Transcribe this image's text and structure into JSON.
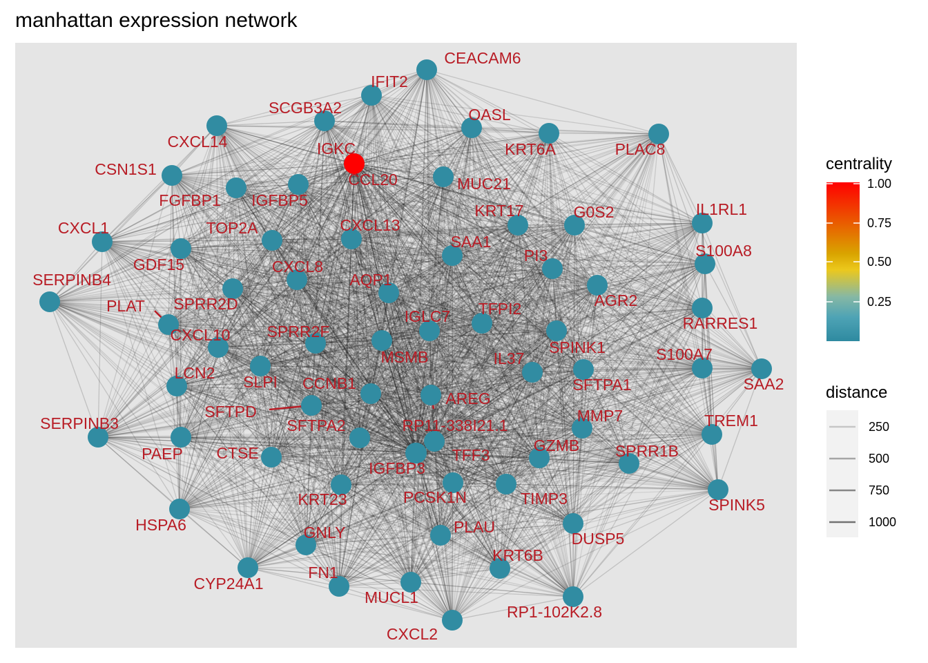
{
  "title": "manhattan expression network",
  "chart_data": {
    "type": "network",
    "title": "manhattan expression network",
    "panel_background": "#e5e5e5",
    "node_color_low": "#2e8aa0",
    "node_color_high": "#ff0000",
    "label_color": "#b81c25",
    "edge_color": "#1a1a1a",
    "nodes": [
      {
        "label": "CEACAM6",
        "centrality": 0.02
      },
      {
        "label": "IFIT2",
        "centrality": 0.02
      },
      {
        "label": "SCGB3A2",
        "centrality": 0.02
      },
      {
        "label": "OASL",
        "centrality": 0.02
      },
      {
        "label": "KRT6A",
        "centrality": 0.02
      },
      {
        "label": "PLAC8",
        "centrality": 0.02
      },
      {
        "label": "CXCL14",
        "centrality": 0.02
      },
      {
        "label": "IGKC",
        "centrality": 1.0
      },
      {
        "label": "CCL20",
        "centrality": 0.02
      },
      {
        "label": "CSN1S1",
        "centrality": 0.02
      },
      {
        "label": "MUC21",
        "centrality": 0.02
      },
      {
        "label": "FGFBP1",
        "centrality": 0.02
      },
      {
        "label": "IGFBP5",
        "centrality": 0.02
      },
      {
        "label": "IL1RL1",
        "centrality": 0.02
      },
      {
        "label": "KRT17",
        "centrality": 0.02
      },
      {
        "label": "G0S2",
        "centrality": 0.02
      },
      {
        "label": "CXCL1",
        "centrality": 0.02
      },
      {
        "label": "TOP2A",
        "centrality": 0.02
      },
      {
        "label": "CXCL13",
        "centrality": 0.02
      },
      {
        "label": "S100A8",
        "centrality": 0.02
      },
      {
        "label": "GDF15",
        "centrality": 0.02
      },
      {
        "label": "SAA1",
        "centrality": 0.02
      },
      {
        "label": "PI3",
        "centrality": 0.02
      },
      {
        "label": "CXCL8",
        "centrality": 0.02
      },
      {
        "label": "SERPINB4",
        "centrality": 0.02
      },
      {
        "label": "AQP1",
        "centrality": 0.02
      },
      {
        "label": "AGR2",
        "centrality": 0.02
      },
      {
        "label": "PLAT",
        "centrality": 0.02
      },
      {
        "label": "SPRR2D",
        "centrality": 0.02
      },
      {
        "label": "RARRES1",
        "centrality": 0.02
      },
      {
        "label": "IGLC7",
        "centrality": 0.02
      },
      {
        "label": "TFPI2",
        "centrality": 0.02
      },
      {
        "label": "CXCL10",
        "centrality": 0.02
      },
      {
        "label": "SPRR2F",
        "centrality": 0.02
      },
      {
        "label": "SPINK1",
        "centrality": 0.02
      },
      {
        "label": "S100A7",
        "centrality": 0.02
      },
      {
        "label": "MSMB",
        "centrality": 0.02
      },
      {
        "label": "SAA2",
        "centrality": 0.02
      },
      {
        "label": "IL37",
        "centrality": 0.02
      },
      {
        "label": "LCN2",
        "centrality": 0.02
      },
      {
        "label": "SLPI",
        "centrality": 0.02
      },
      {
        "label": "SFTPA1",
        "centrality": 0.02
      },
      {
        "label": "CCNB1",
        "centrality": 0.02
      },
      {
        "label": "AREG",
        "centrality": 0.02
      },
      {
        "label": "SFTPD",
        "centrality": 0.02
      },
      {
        "label": "MMP7",
        "centrality": 0.02
      },
      {
        "label": "SERPINB3",
        "centrality": 0.02
      },
      {
        "label": "TREM1",
        "centrality": 0.02
      },
      {
        "label": "SFTPA2",
        "centrality": 0.02
      },
      {
        "label": "RP11-338I21.1",
        "centrality": 0.02
      },
      {
        "label": "PAEP",
        "centrality": 0.02
      },
      {
        "label": "CTSE",
        "centrality": 0.02
      },
      {
        "label": "GZMB",
        "centrality": 0.02
      },
      {
        "label": "TFF3",
        "centrality": 0.02
      },
      {
        "label": "SPRR1B",
        "centrality": 0.02
      },
      {
        "label": "IGFBP3",
        "centrality": 0.02
      },
      {
        "label": "KRT23",
        "centrality": 0.02
      },
      {
        "label": "PCSK1N",
        "centrality": 0.02
      },
      {
        "label": "TIMP3",
        "centrality": 0.02
      },
      {
        "label": "SPINK5",
        "centrality": 0.02
      },
      {
        "label": "HSPA6",
        "centrality": 0.02
      },
      {
        "label": "GNLY",
        "centrality": 0.02
      },
      {
        "label": "PLAU",
        "centrality": 0.02
      },
      {
        "label": "DUSP5",
        "centrality": 0.02
      },
      {
        "label": "KRT6B",
        "centrality": 0.02
      },
      {
        "label": "FN1",
        "centrality": 0.02
      },
      {
        "label": "CYP24A1",
        "centrality": 0.02
      },
      {
        "label": "MUCL1",
        "centrality": 0.02
      },
      {
        "label": "RP1-102K2.8",
        "centrality": 0.02
      },
      {
        "label": "CXCL2",
        "centrality": 0.02
      }
    ],
    "edges": "fully connected (every pair of nodes linked)",
    "legend_centrality": {
      "title": "centrality",
      "ticks": [
        "1.00",
        "0.75",
        "0.50",
        "0.25"
      ],
      "colors": [
        "#ff0000",
        "#ea5a00",
        "#d9a400",
        "#ecc81c",
        "#86b8a4",
        "#4ea3b5",
        "#2e8aa0"
      ]
    },
    "legend_distance": {
      "title": "distance",
      "entries": [
        "250",
        "500",
        "750",
        "1000"
      ]
    },
    "grid": false
  }
}
